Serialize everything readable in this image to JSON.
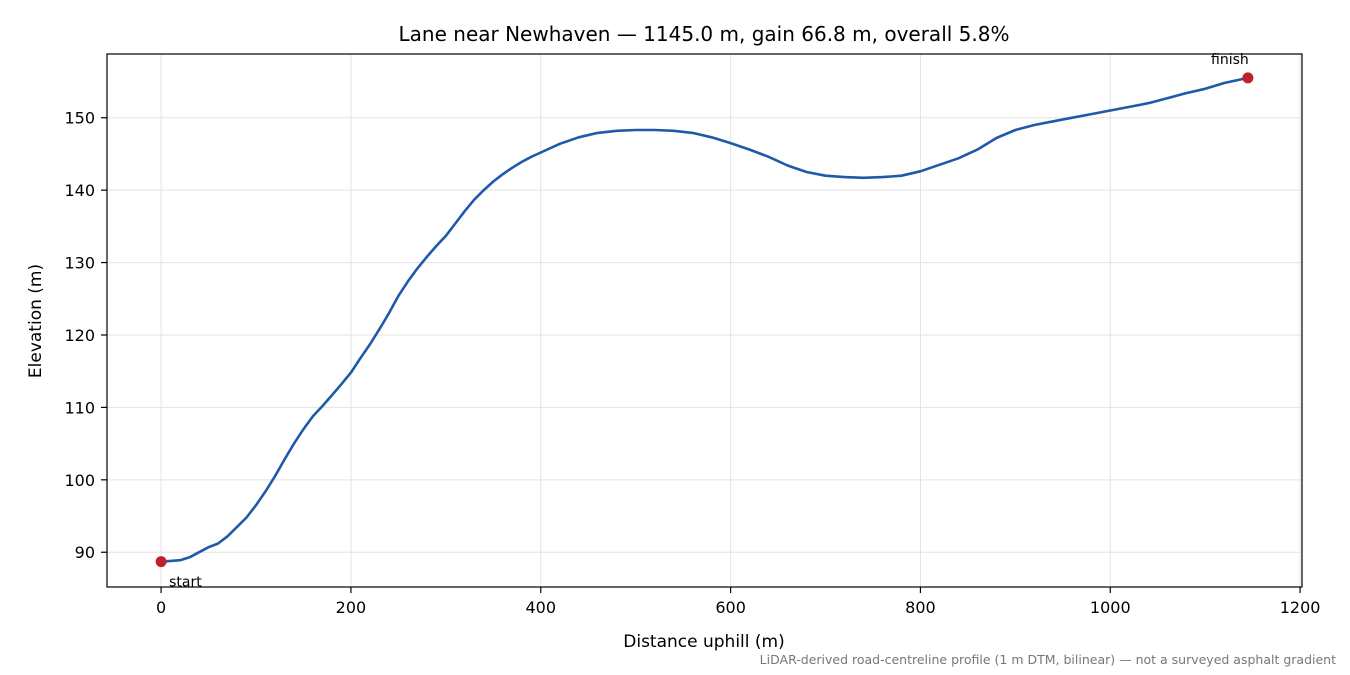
{
  "chart_data": {
    "type": "line",
    "title": "Lane near Newhaven — 1145.0 m, gain 66.8 m, overall 5.8%",
    "xlabel": "Distance uphill (m)",
    "ylabel": "Elevation (m)",
    "xlim": [
      -57,
      1202
    ],
    "ylim": [
      85.2,
      158.8
    ],
    "xticks": [
      0,
      200,
      400,
      600,
      800,
      1000,
      1200
    ],
    "yticks": [
      90,
      100,
      110,
      120,
      130,
      140,
      150
    ],
    "grid": true,
    "line_color": "#1f5aa8",
    "marker_color": "#c0202a",
    "series": [
      {
        "x": [
          0,
          10,
          20,
          30,
          40,
          50,
          60,
          70,
          80,
          90,
          100,
          110,
          120,
          130,
          140,
          150,
          160,
          170,
          180,
          190,
          200,
          210,
          220,
          230,
          240,
          250,
          260,
          270,
          280,
          290,
          300,
          310,
          320,
          330,
          340,
          350,
          360,
          370,
          380,
          390,
          400,
          420,
          440,
          460,
          480,
          500,
          520,
          540,
          560,
          580,
          600,
          620,
          640,
          660,
          680,
          700,
          720,
          740,
          760,
          780,
          800,
          820,
          840,
          860,
          880,
          900,
          920,
          940,
          960,
          980,
          1000,
          1020,
          1040,
          1060,
          1080,
          1100,
          1120,
          1145
        ],
        "y": [
          88.7,
          88.8,
          88.9,
          89.3,
          90.0,
          90.7,
          91.2,
          92.2,
          93.5,
          94.8,
          96.5,
          98.4,
          100.5,
          102.8,
          105.0,
          107.0,
          108.8,
          110.2,
          111.7,
          113.2,
          114.8,
          116.8,
          118.7,
          120.8,
          123.0,
          125.4,
          127.4,
          129.2,
          130.8,
          132.3,
          133.7,
          135.4,
          137.1,
          138.7,
          140.0,
          141.2,
          142.2,
          143.1,
          143.9,
          144.6,
          145.2,
          146.4,
          147.3,
          147.9,
          148.2,
          148.3,
          148.3,
          148.2,
          147.9,
          147.3,
          146.5,
          145.6,
          144.6,
          143.4,
          142.5,
          142.0,
          141.8,
          141.7,
          141.8,
          142.0,
          142.6,
          143.5,
          144.4,
          145.6,
          147.2,
          148.3,
          149.0,
          149.5,
          150.0,
          150.5,
          151.0,
          151.5,
          152.0,
          152.7,
          153.4,
          154.0,
          154.8,
          155.5
        ]
      }
    ],
    "annotations": [
      {
        "text": "start",
        "x": 0,
        "y": 88.7
      },
      {
        "text": "finish",
        "x": 1145,
        "y": 155.5
      }
    ],
    "footnote": "LiDAR-derived road-centreline profile (1 m DTM, bilinear) — not a surveyed asphalt gradient"
  }
}
